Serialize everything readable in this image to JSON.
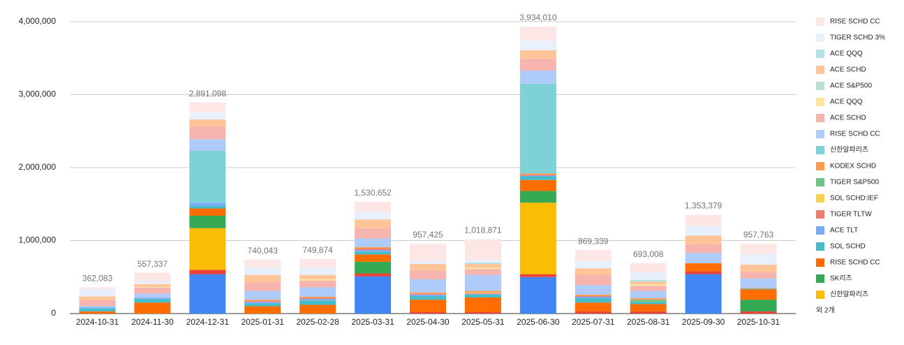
{
  "chart_data": {
    "type": "stacked_bar",
    "categories": [
      "2024-10-31",
      "2024-11-30",
      "2024-12-31",
      "2025-01-31",
      "2025-02-28",
      "2025-03-31",
      "2025-04-30",
      "2025-05-31",
      "2025-06-30",
      "2025-07-31",
      "2025-08-31",
      "2025-09-30",
      "2025-10-31"
    ],
    "ylim": [
      0,
      4000000
    ],
    "yticks": [
      0,
      {
        "value": 1000000,
        "label": "1,000,000"
      },
      {
        "value": 2000000,
        "label": "2,000,000"
      },
      {
        "value": 3000000,
        "label": "3,000,000"
      },
      {
        "value": 4000000,
        "label": "4,000,000"
      }
    ],
    "grid": true,
    "legend": "right",
    "legend_more": "외 2개",
    "totals": {
      "values": [
        362083,
        557337,
        2891098,
        740043,
        749874,
        1530652,
        957425,
        1018871,
        3934010,
        869339,
        693008,
        1353379,
        957763
      ],
      "value_labels": [
        "362,083",
        "557,337",
        "2,891,098",
        "740,043",
        "749,874",
        "1,530,652",
        "957,425",
        "1,018,871",
        "3,934,010",
        "869,339",
        "693,008",
        "1,353,379",
        "957,763"
      ]
    },
    "series": [
      {
        "color": "#4285f4",
        "values": [
          0,
          0,
          540000,
          0,
          0,
          510000,
          0,
          0,
          500000,
          0,
          0,
          540000,
          0
        ]
      },
      {
        "color": "#ea4335",
        "values": [
          0,
          0,
          60000,
          0,
          0,
          40000,
          20000,
          20000,
          40000,
          30000,
          30000,
          40000,
          30000
        ]
      },
      {
        "name": "신한알파리츠",
        "color": "#fbbc04",
        "values": [
          0,
          0,
          570000,
          0,
          0,
          0,
          0,
          0,
          980000,
          0,
          0,
          0,
          0
        ]
      },
      {
        "name": "SK리츠",
        "color": "#34a853",
        "values": [
          0,
          0,
          170000,
          0,
          0,
          160000,
          0,
          0,
          160000,
          0,
          0,
          0,
          160000
        ]
      },
      {
        "name": "RISE SCHD CC",
        "color": "#ff6d01",
        "values": [
          30000,
          150000,
          100000,
          100000,
          120000,
          100000,
          170000,
          200000,
          150000,
          120000,
          100000,
          110000,
          140000
        ]
      },
      {
        "name": "SOL SCHD",
        "color": "#46bdc6",
        "values": [
          40000,
          50000,
          40000,
          40000,
          60000,
          40000,
          50000,
          40000,
          50000,
          60000,
          30000,
          0,
          10000
        ]
      },
      {
        "name": "ACE TLT",
        "color": "#7baaf7",
        "values": [
          15000,
          15000,
          40000,
          20000,
          20000,
          20000,
          20000,
          10000,
          10000,
          20000,
          0,
          0,
          0
        ]
      },
      {
        "name": "TIGER TLTW",
        "color": "#f07b72",
        "values": [
          0,
          0,
          0,
          10000,
          10000,
          20000,
          10000,
          10000,
          10000,
          10000,
          0,
          0,
          0
        ]
      },
      {
        "name": "SOL SCHD:IEF",
        "color": "#fcd04f",
        "values": [
          0,
          0,
          0,
          0,
          0,
          0,
          0,
          10000,
          0,
          0,
          0,
          0,
          0
        ]
      },
      {
        "name": "TIGER S&P500",
        "color": "#71c287",
        "values": [
          0,
          0,
          0,
          0,
          0,
          0,
          0,
          0,
          0,
          0,
          30000,
          0,
          0
        ]
      },
      {
        "name": "KODEX SCHD",
        "color": "#ff994d",
        "values": [
          0,
          0,
          0,
          20000,
          20000,
          20000,
          20000,
          20000,
          20000,
          20000,
          20000,
          0,
          10000
        ]
      },
      {
        "name": "신한알파리츠",
        "color": "#7ed1d7",
        "values": [
          0,
          0,
          710000,
          0,
          0,
          0,
          0,
          0,
          1230000,
          0,
          0,
          0,
          0
        ]
      },
      {
        "name": "RISE SCHD CC",
        "color": "#aecbfa",
        "values": [
          20000,
          60000,
          160000,
          120000,
          130000,
          120000,
          180000,
          220000,
          180000,
          130000,
          100000,
          140000,
          130000
        ]
      },
      {
        "name": "ACE SCHD",
        "color": "#f7b4ae",
        "values": [
          80000,
          80000,
          170000,
          120000,
          90000,
          140000,
          120000,
          80000,
          160000,
          140000,
          70000,
          120000,
          90000
        ]
      },
      {
        "name": "ACE QQQ",
        "color": "#fde49b",
        "values": [
          0,
          10000,
          0,
          0,
          20000,
          0,
          0,
          20000,
          0,
          0,
          20000,
          0,
          0
        ]
      },
      {
        "name": "ACE S&P500",
        "color": "#b7e1cd",
        "values": [
          0,
          0,
          0,
          0,
          0,
          0,
          0,
          0,
          0,
          0,
          0,
          0,
          0
        ]
      },
      {
        "name": "ACE SCHD",
        "color": "#ffc599",
        "values": [
          50000,
          40000,
          100000,
          100000,
          60000,
          120000,
          90000,
          50000,
          120000,
          90000,
          40000,
          120000,
          100000
        ]
      },
      {
        "name": "ACE QQQ",
        "color": "#b2e3e6",
        "values": [
          0,
          0,
          0,
          0,
          0,
          0,
          0,
          20000,
          0,
          0,
          20000,
          0,
          0
        ]
      },
      {
        "name": "TIGER SCHD 3%",
        "color": "#e8f0fe",
        "values": [
          100000,
          40000,
          100000,
          100000,
          100000,
          100000,
          40000,
          40000,
          130000,
          100000,
          100000,
          130000,
          140000
        ]
      },
      {
        "name": "RISE SCHD CC",
        "color": "#fde7e6",
        "values": [
          27000,
          112000,
          131000,
          110000,
          120000,
          141000,
          237000,
          279000,
          194000,
          149000,
          133000,
          153000,
          148000
        ]
      }
    ]
  }
}
